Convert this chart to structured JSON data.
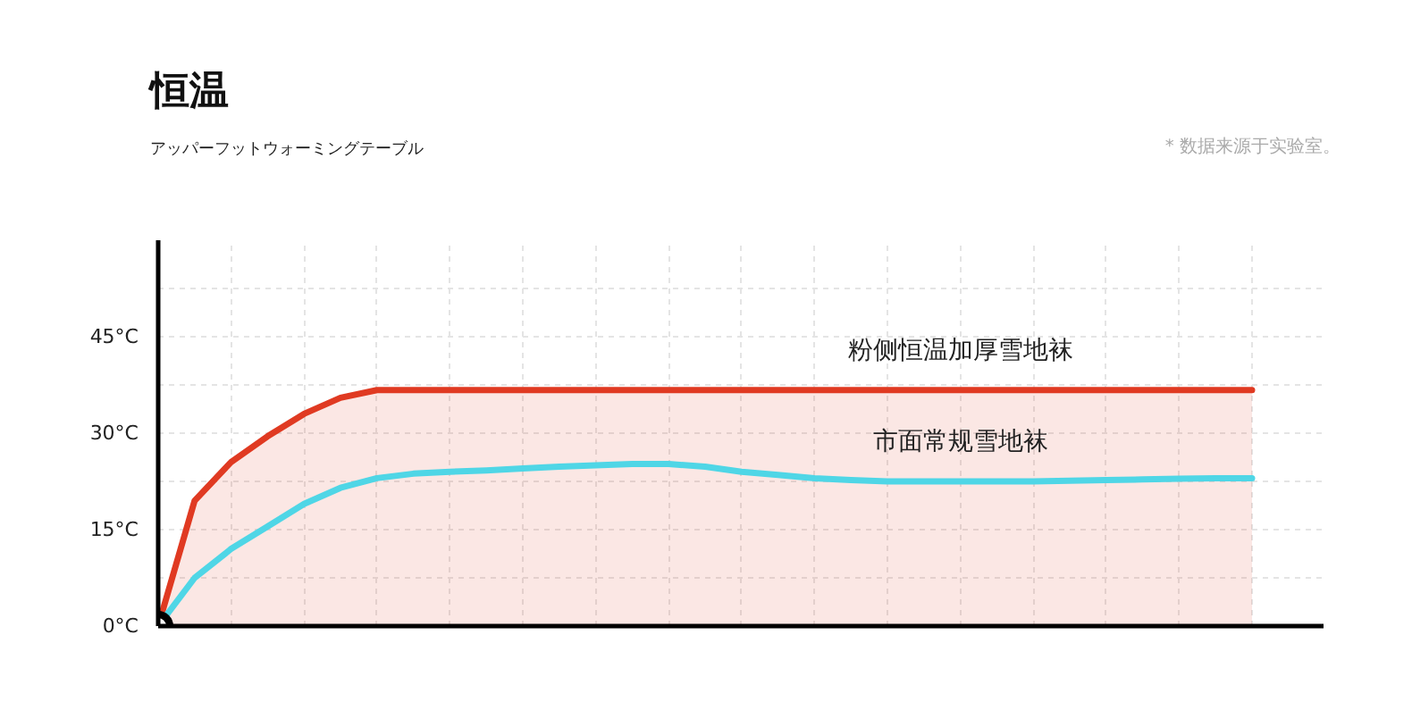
{
  "chart_data": {
    "type": "line",
    "title": "恒温",
    "subtitle": "アッパーフットウォーミングテーブル",
    "annotations": [
      "* 数据来源于实验室。"
    ],
    "categories": [
      null,
      null,
      null,
      null,
      null,
      null,
      null,
      null,
      null,
      null,
      null,
      null,
      null,
      null,
      null,
      null,
      null,
      null,
      null,
      null,
      null,
      null,
      null,
      null,
      null,
      null,
      null,
      null,
      null,
      null,
      null
    ],
    "series": [
      {
        "name": "粉侧恒温加厚雪地袜",
        "type": "area",
        "color": "#e03a22",
        "values": [
          0,
          19.5,
          25.5,
          29.5,
          33,
          35.5,
          36.7,
          36.7,
          36.7,
          36.7,
          36.7,
          36.7,
          36.7,
          36.7,
          36.7,
          36.7,
          36.7,
          36.7,
          36.7,
          36.7,
          36.7,
          36.7,
          36.7,
          36.7,
          36.7,
          36.7,
          36.7,
          36.7,
          36.7,
          36.7,
          36.7
        ]
      },
      {
        "name": "市面常规雪地袜",
        "color": "#4fd6e6",
        "values": [
          0,
          7.5,
          12,
          15.5,
          19,
          21.5,
          23,
          23.7,
          24,
          24.2,
          24.5,
          24.8,
          25,
          25.2,
          25.2,
          24.8,
          24,
          23.5,
          23,
          22.7,
          22.5,
          22.5,
          22.5,
          22.5,
          22.5,
          22.6,
          22.7,
          22.8,
          22.9,
          23,
          23
        ]
      }
    ],
    "ylim": [
      0,
      60
    ],
    "yticks": [
      {
        "value": 0,
        "label": "0°C"
      },
      {
        "value": 7.5,
        "label": null
      },
      {
        "value": 15,
        "label": "15°C"
      },
      {
        "value": 22.5,
        "label": null
      },
      {
        "value": 30,
        "label": "30°C"
      },
      {
        "value": 37.5,
        "label": null
      },
      {
        "value": 45,
        "label": "45°C"
      },
      {
        "value": 52.5,
        "label": null
      }
    ],
    "grid": true,
    "legend": false,
    "marker": "none",
    "line_style": "solid"
  }
}
